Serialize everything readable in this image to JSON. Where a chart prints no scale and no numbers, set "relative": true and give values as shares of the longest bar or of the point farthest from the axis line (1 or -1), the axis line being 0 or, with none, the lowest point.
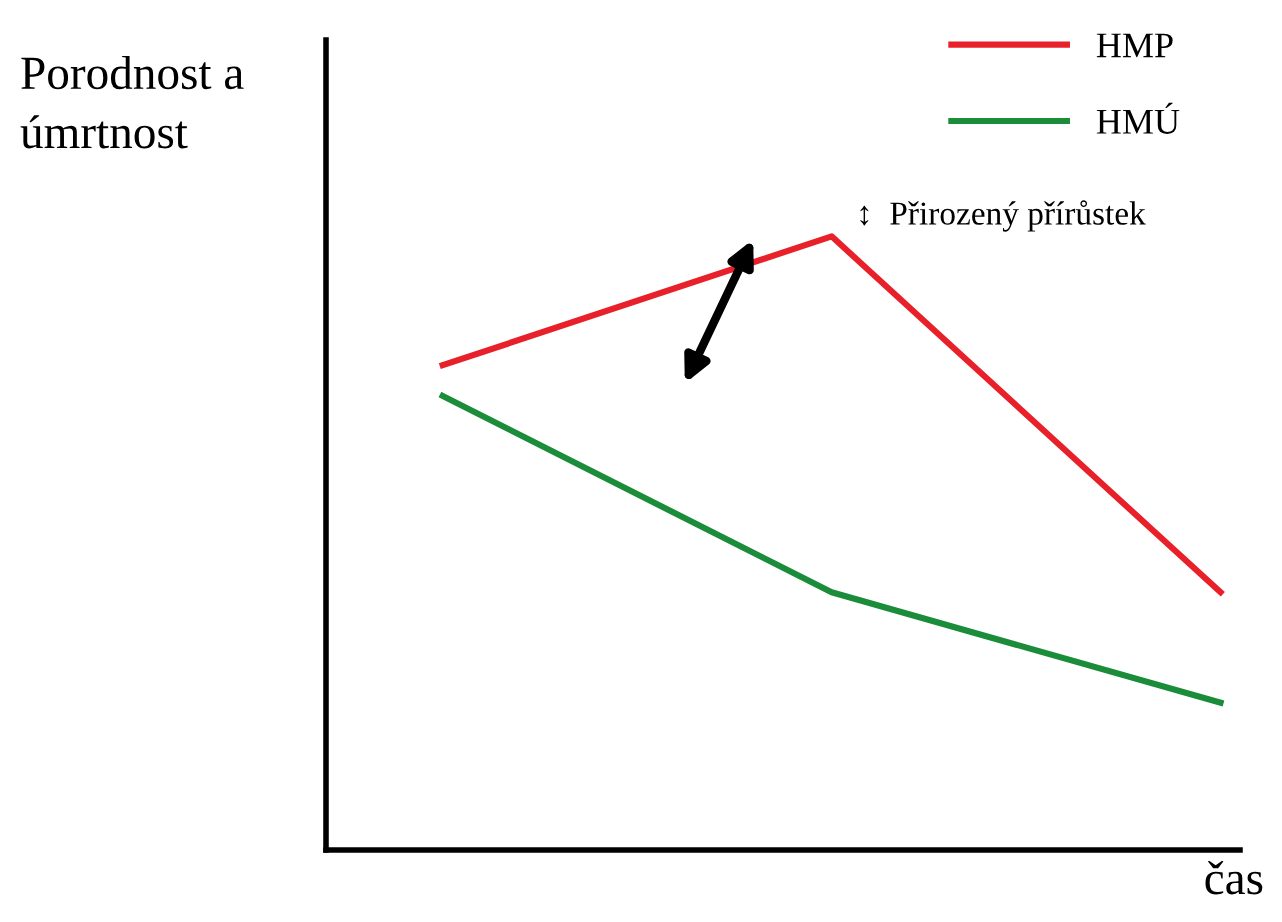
{
  "chart_data": {
    "type": "line",
    "relative": true,
    "ylabel": "Porodnost a\númrtnost",
    "xlabel": "čas",
    "legend": "top right",
    "categories": [
      null,
      null,
      null
    ],
    "series": [
      {
        "name": "HMP",
        "color": "#e8202a",
        "values": [
          0.79,
          1,
          0.42
        ]
      },
      {
        "name": "HMÚ",
        "color": "#1a8c3a",
        "values": [
          0.74,
          0.42,
          0.24
        ]
      }
    ],
    "annotations": [
      "↕  Přirozený přírůstek"
    ]
  }
}
